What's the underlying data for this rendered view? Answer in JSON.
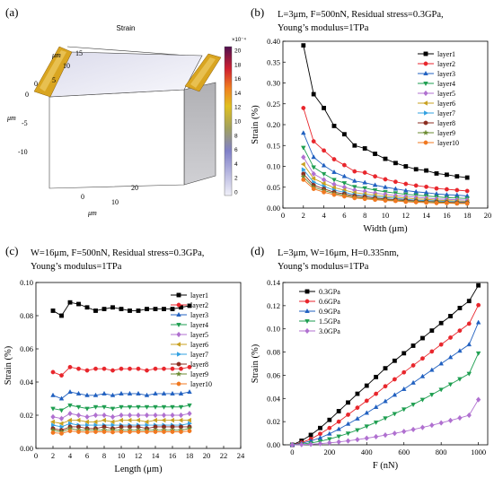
{
  "panels": {
    "a": {
      "label": "(a)",
      "title": "Strain",
      "exponent": "×10⁻⁴",
      "colorbar_ticks": [
        "20",
        "18",
        "16",
        "14",
        "12",
        "10",
        "8",
        "6",
        "4",
        "2",
        "0"
      ],
      "axis_unit": "μm",
      "y_ticks": [
        "15",
        "10",
        "5",
        "0"
      ],
      "x_ticks": [
        "0",
        "10",
        "20"
      ],
      "z_ticks": [
        "0",
        "-5",
        "-10"
      ]
    },
    "b": {
      "label": "(b)"
    },
    "c": {
      "label": "(c)"
    },
    "d": {
      "label": "(d)"
    }
  },
  "chart_data": [
    {
      "id": "b",
      "type": "line",
      "title": "L=3μm, F=500nN, Residual stress=0.3GPa,",
      "subtitle": "Young’s modulus=1TPa",
      "xlabel": "Width (μm)",
      "ylabel": "Strain (%)",
      "xlim": [
        0,
        20
      ],
      "ylim": [
        0,
        0.4
      ],
      "xticks": [
        0,
        2,
        4,
        6,
        8,
        10,
        12,
        14,
        16,
        18,
        20
      ],
      "yticks": [
        0,
        0.05,
        0.1,
        0.15,
        0.2,
        0.25,
        0.3,
        0.35,
        0.4
      ],
      "ytick_labels": [
        "0.00",
        "0.05",
        "0.10",
        "0.15",
        "0.20",
        "0.25",
        "0.30",
        "0.35",
        "0.40"
      ],
      "legend": "top-right",
      "x": [
        2,
        3,
        4,
        5,
        6,
        7,
        8,
        9,
        10,
        11,
        12,
        13,
        14,
        15,
        16,
        17,
        18
      ],
      "series": [
        {
          "name": "layer1",
          "color": "#000000",
          "marker": "square",
          "values": [
            0.39,
            0.273,
            0.24,
            0.197,
            0.177,
            0.15,
            0.143,
            0.13,
            0.118,
            0.108,
            0.1,
            0.093,
            0.09,
            0.083,
            0.08,
            0.076,
            0.073
          ]
        },
        {
          "name": "layer2",
          "color": "#e8262c",
          "marker": "circle",
          "values": [
            0.24,
            0.16,
            0.138,
            0.117,
            0.103,
            0.088,
            0.085,
            0.076,
            0.069,
            0.063,
            0.058,
            0.054,
            0.051,
            0.047,
            0.045,
            0.043,
            0.041
          ]
        },
        {
          "name": "layer3",
          "color": "#2060c0",
          "marker": "triangle-up",
          "values": [
            0.18,
            0.122,
            0.102,
            0.086,
            0.076,
            0.065,
            0.061,
            0.055,
            0.05,
            0.046,
            0.042,
            0.039,
            0.037,
            0.034,
            0.032,
            0.031,
            0.029
          ]
        },
        {
          "name": "layer4",
          "color": "#1e9e50",
          "marker": "triangle-down",
          "values": [
            0.145,
            0.098,
            0.082,
            0.068,
            0.06,
            0.051,
            0.048,
            0.043,
            0.039,
            0.036,
            0.033,
            0.031,
            0.029,
            0.027,
            0.025,
            0.024,
            0.023
          ]
        },
        {
          "name": "layer5",
          "color": "#b070d0",
          "marker": "diamond",
          "values": [
            0.122,
            0.082,
            0.068,
            0.057,
            0.05,
            0.043,
            0.04,
            0.036,
            0.033,
            0.03,
            0.028,
            0.026,
            0.024,
            0.022,
            0.021,
            0.02,
            0.019
          ]
        },
        {
          "name": "layer6",
          "color": "#c8a020",
          "marker": "triangle-left",
          "values": [
            0.105,
            0.071,
            0.059,
            0.049,
            0.043,
            0.037,
            0.034,
            0.031,
            0.028,
            0.026,
            0.024,
            0.022,
            0.021,
            0.019,
            0.018,
            0.017,
            0.016
          ]
        },
        {
          "name": "layer7",
          "color": "#30a0e0",
          "marker": "triangle-right",
          "values": [
            0.092,
            0.062,
            0.052,
            0.043,
            0.038,
            0.032,
            0.03,
            0.027,
            0.025,
            0.023,
            0.021,
            0.019,
            0.018,
            0.017,
            0.016,
            0.015,
            0.014
          ]
        },
        {
          "name": "layer8",
          "color": "#8b2c20",
          "marker": "hexagon",
          "values": [
            0.082,
            0.055,
            0.046,
            0.038,
            0.034,
            0.029,
            0.027,
            0.024,
            0.022,
            0.02,
            0.019,
            0.017,
            0.016,
            0.015,
            0.014,
            0.013,
            0.013
          ]
        },
        {
          "name": "layer9",
          "color": "#6a8a30",
          "marker": "star",
          "values": [
            0.075,
            0.05,
            0.042,
            0.035,
            0.031,
            0.026,
            0.024,
            0.022,
            0.02,
            0.018,
            0.017,
            0.016,
            0.015,
            0.014,
            0.013,
            0.012,
            0.012
          ]
        },
        {
          "name": "layer10",
          "color": "#f07820",
          "marker": "circle",
          "values": [
            0.068,
            0.046,
            0.038,
            0.032,
            0.028,
            0.024,
            0.022,
            0.02,
            0.018,
            0.017,
            0.015,
            0.014,
            0.013,
            0.012,
            0.012,
            0.011,
            0.011
          ]
        }
      ]
    },
    {
      "id": "c",
      "type": "line",
      "title": "W=16μm, F=500nN, Residual stress=0.3GPa,",
      "subtitle": "Young’s modulus=1TPa",
      "xlabel": "Length (μm)",
      "ylabel": "Strain (%)",
      "xlim": [
        0,
        24
      ],
      "ylim": [
        0,
        0.1
      ],
      "xticks": [
        0,
        2,
        4,
        6,
        8,
        10,
        12,
        14,
        16,
        18,
        20,
        22,
        24
      ],
      "yticks": [
        0,
        0.02,
        0.04,
        0.06,
        0.08,
        0.1
      ],
      "ytick_labels": [
        "0.00",
        "0.02",
        "0.04",
        "0.06",
        "0.08",
        "0.10"
      ],
      "legend": "top-right",
      "x": [
        2,
        3,
        4,
        5,
        6,
        7,
        8,
        9,
        10,
        11,
        12,
        13,
        14,
        15,
        16,
        17,
        18
      ],
      "series": [
        {
          "name": "layer1",
          "color": "#000000",
          "marker": "square",
          "values": [
            0.083,
            0.08,
            0.088,
            0.087,
            0.085,
            0.083,
            0.084,
            0.085,
            0.084,
            0.083,
            0.083,
            0.084,
            0.084,
            0.084,
            0.084,
            0.085,
            0.086
          ]
        },
        {
          "name": "layer2",
          "color": "#e8262c",
          "marker": "circle",
          "values": [
            0.046,
            0.044,
            0.049,
            0.048,
            0.047,
            0.048,
            0.048,
            0.047,
            0.048,
            0.048,
            0.048,
            0.047,
            0.048,
            0.048,
            0.048,
            0.048,
            0.049
          ]
        },
        {
          "name": "layer3",
          "color": "#2060c0",
          "marker": "triangle-up",
          "values": [
            0.032,
            0.03,
            0.034,
            0.033,
            0.032,
            0.032,
            0.033,
            0.032,
            0.033,
            0.033,
            0.033,
            0.032,
            0.033,
            0.033,
            0.033,
            0.033,
            0.034
          ]
        },
        {
          "name": "layer4",
          "color": "#1e9e50",
          "marker": "triangle-down",
          "values": [
            0.024,
            0.023,
            0.026,
            0.025,
            0.024,
            0.025,
            0.025,
            0.024,
            0.025,
            0.025,
            0.025,
            0.025,
            0.025,
            0.025,
            0.025,
            0.025,
            0.026
          ]
        },
        {
          "name": "layer5",
          "color": "#b070d0",
          "marker": "diamond",
          "values": [
            0.019,
            0.018,
            0.021,
            0.02,
            0.019,
            0.02,
            0.02,
            0.019,
            0.02,
            0.02,
            0.02,
            0.02,
            0.02,
            0.02,
            0.02,
            0.02,
            0.021
          ]
        },
        {
          "name": "layer6",
          "color": "#c8a020",
          "marker": "triangle-left",
          "values": [
            0.016,
            0.015,
            0.017,
            0.017,
            0.016,
            0.016,
            0.017,
            0.016,
            0.017,
            0.017,
            0.017,
            0.016,
            0.017,
            0.017,
            0.017,
            0.017,
            0.017
          ]
        },
        {
          "name": "layer7",
          "color": "#30a0e0",
          "marker": "triangle-right",
          "values": [
            0.014,
            0.013,
            0.015,
            0.014,
            0.014,
            0.014,
            0.014,
            0.014,
            0.014,
            0.014,
            0.014,
            0.014,
            0.014,
            0.014,
            0.014,
            0.014,
            0.015
          ]
        },
        {
          "name": "layer8",
          "color": "#8b2c20",
          "marker": "hexagon",
          "values": [
            0.012,
            0.011,
            0.013,
            0.013,
            0.012,
            0.012,
            0.013,
            0.012,
            0.013,
            0.013,
            0.013,
            0.012,
            0.013,
            0.013,
            0.013,
            0.013,
            0.013
          ]
        },
        {
          "name": "layer9",
          "color": "#6a8a30",
          "marker": "star",
          "values": [
            0.011,
            0.01,
            0.012,
            0.011,
            0.011,
            0.011,
            0.011,
            0.011,
            0.011,
            0.011,
            0.011,
            0.011,
            0.011,
            0.011,
            0.011,
            0.011,
            0.012
          ]
        },
        {
          "name": "layer10",
          "color": "#f07820",
          "marker": "circle",
          "values": [
            0.0095,
            0.009,
            0.0105,
            0.01,
            0.0098,
            0.01,
            0.01,
            0.0098,
            0.01,
            0.01,
            0.01,
            0.01,
            0.01,
            0.01,
            0.01,
            0.01,
            0.0105
          ]
        }
      ]
    },
    {
      "id": "d",
      "type": "line",
      "title": "L=3μm, W=16μm, H=0.335nm,",
      "subtitle": "Young’s modulus=1TPa",
      "xlabel": "F (nN)",
      "ylabel": "Strain (%)",
      "xlim": [
        -50,
        1050
      ],
      "ylim": [
        0,
        0.14
      ],
      "xticks": [
        0,
        200,
        400,
        600,
        800,
        1000
      ],
      "yticks": [
        0,
        0.02,
        0.04,
        0.06,
        0.08,
        0.1,
        0.12,
        0.14
      ],
      "ytick_labels": [
        "0.00",
        "0.02",
        "0.04",
        "0.06",
        "0.08",
        "0.10",
        "0.12",
        "0.14"
      ],
      "legend": "top-left",
      "x": [
        0,
        50,
        100,
        150,
        200,
        250,
        300,
        350,
        400,
        450,
        500,
        550,
        600,
        650,
        700,
        750,
        800,
        850,
        900,
        950,
        1000
      ],
      "series": [
        {
          "name": "0.3GPa",
          "color": "#000000",
          "marker": "square",
          "values": [
            0,
            0.0035,
            0.0085,
            0.0145,
            0.0215,
            0.029,
            0.0365,
            0.044,
            0.051,
            0.0585,
            0.066,
            0.0725,
            0.079,
            0.0855,
            0.092,
            0.0985,
            0.105,
            0.111,
            0.118,
            0.124,
            0.1375
          ]
        },
        {
          "name": "0.6GPa",
          "color": "#e8262c",
          "marker": "circle",
          "values": [
            0,
            0.002,
            0.005,
            0.0095,
            0.0145,
            0.02,
            0.026,
            0.032,
            0.038,
            0.044,
            0.0505,
            0.0565,
            0.0625,
            0.0685,
            0.0745,
            0.0805,
            0.0865,
            0.0925,
            0.0985,
            0.1045,
            0.1205
          ]
        },
        {
          "name": "0.9GPa",
          "color": "#2060c0",
          "marker": "triangle-up",
          "values": [
            0,
            0.0012,
            0.0033,
            0.006,
            0.0095,
            0.0135,
            0.018,
            0.0225,
            0.0275,
            0.0325,
            0.0375,
            0.043,
            0.048,
            0.0535,
            0.059,
            0.0645,
            0.07,
            0.0755,
            0.081,
            0.0865,
            0.1055
          ]
        },
        {
          "name": "1.5GPa",
          "color": "#1e9e50",
          "marker": "triangle-down",
          "values": [
            0,
            0.0006,
            0.0016,
            0.003,
            0.005,
            0.0073,
            0.0099,
            0.0128,
            0.016,
            0.0194,
            0.023,
            0.0268,
            0.0307,
            0.0348,
            0.039,
            0.0433,
            0.0477,
            0.0522,
            0.0568,
            0.0614,
            0.079
          ]
        },
        {
          "name": "3.0GPa",
          "color": "#b070d0",
          "marker": "diamond",
          "values": [
            0,
            0.0002,
            0.0005,
            0.001,
            0.0017,
            0.0025,
            0.0034,
            0.0045,
            0.0057,
            0.007,
            0.0084,
            0.0099,
            0.0115,
            0.0132,
            0.015,
            0.0169,
            0.0189,
            0.021,
            0.0232,
            0.0255,
            0.039
          ]
        }
      ]
    }
  ]
}
